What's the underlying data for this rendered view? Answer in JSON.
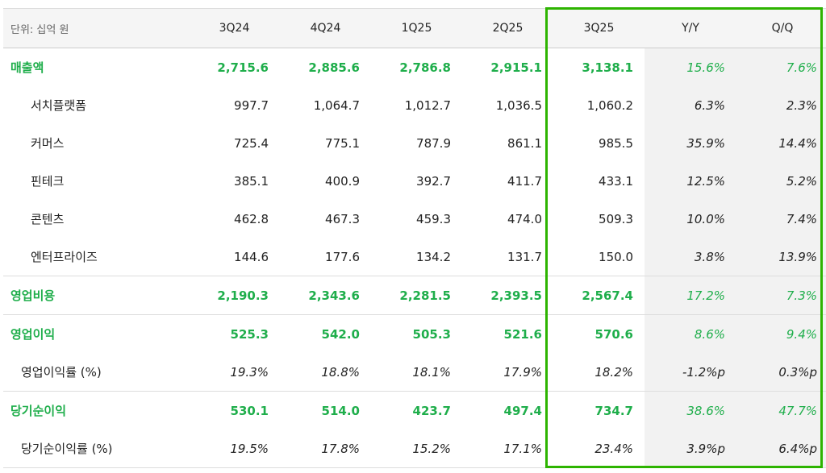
{
  "table": {
    "header": [
      "단위: 십억 원",
      "3Q24",
      "4Q24",
      "1Q25",
      "2Q25",
      "3Q25",
      "Y/Y",
      "Q/Q"
    ],
    "rows": [
      [
        "매출액",
        "2,715.6",
        "2,885.6",
        "2,786.8",
        "2,915.1",
        "3,138.1",
        "15.6%",
        "7.6%"
      ],
      [
        "서치플랫폼",
        "997.7",
        "1,064.7",
        "1,012.7",
        "1,036.5",
        "1,060.2",
        "6.3%",
        "2.3%"
      ],
      [
        "커머스",
        "725.4",
        "775.1",
        "787.9",
        "861.1",
        "985.5",
        "35.9%",
        "14.4%"
      ],
      [
        "핀테크",
        "385.1",
        "400.9",
        "392.7",
        "411.7",
        "433.1",
        "12.5%",
        "5.2%"
      ],
      [
        "콘텐츠",
        "462.8",
        "467.3",
        "459.3",
        "474.0",
        "509.3",
        "10.0%",
        "7.4%"
      ],
      [
        "엔터프라이즈",
        "144.6",
        "177.6",
        "134.2",
        "131.7",
        "150.0",
        "3.8%",
        "13.9%"
      ],
      [
        "영업비용",
        "2,190.3",
        "2,343.6",
        "2,281.5",
        "2,393.5",
        "2,567.4",
        "17.2%",
        "7.3%"
      ],
      [
        "영업이익",
        "525.3",
        "542.0",
        "505.3",
        "521.6",
        "570.6",
        "8.6%",
        "9.4%"
      ],
      [
        "영업이익률 (%)",
        "19.3%",
        "18.8%",
        "18.1%",
        "17.9%",
        "18.2%",
        "-1.2%p",
        "0.3%p"
      ],
      [
        "당기순이익",
        "530.1",
        "514.0",
        "423.7",
        "497.4",
        "734.7",
        "38.6%",
        "47.7%"
      ],
      [
        "당기순이익률 (%)",
        "19.5%",
        "17.8%",
        "15.2%",
        "17.1%",
        "23.4%",
        "3.9%p",
        "6.4%p"
      ]
    ]
  }
}
